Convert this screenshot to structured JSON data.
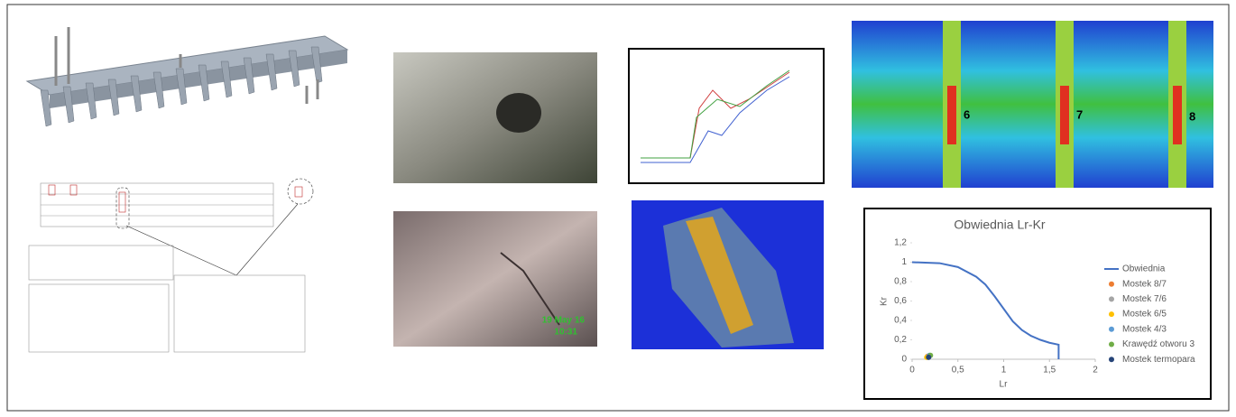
{
  "fea_labels": [
    "6",
    "7",
    "8"
  ],
  "photo_timestamp": [
    "19 May 16",
    "10:31"
  ],
  "chart_data": {
    "type": "scatter",
    "title": "Obwiednia Lr-Kr",
    "x_label": "Lr",
    "y_label": "Kr",
    "xlim": [
      0,
      2
    ],
    "ylim": [
      0,
      1.2
    ],
    "xticks": [
      0,
      {
        "value": 0.5,
        "label": "0,5"
      },
      1,
      {
        "value": 1.5,
        "label": "1,5"
      },
      2
    ],
    "yticks": [
      0,
      {
        "value": 0.2,
        "label": "0,2"
      },
      {
        "value": 0.4,
        "label": "0,4"
      },
      {
        "value": 0.6,
        "label": "0,6"
      },
      {
        "value": 0.8,
        "label": "0,8"
      },
      1,
      {
        "value": 1.2,
        "label": "1,2"
      }
    ],
    "legend": "right",
    "series": [
      {
        "name": "Obwiednia",
        "color": "#4472c4",
        "mode": "line",
        "x": [
          0,
          0.3,
          0.5,
          0.7,
          0.8,
          0.9,
          1.0,
          1.1,
          1.2,
          1.3,
          1.4,
          1.5,
          1.6,
          1.6
        ],
        "values": [
          1,
          0.99,
          0.95,
          0.85,
          0.77,
          0.65,
          0.52,
          0.39,
          0.3,
          0.24,
          0.2,
          0.17,
          0.15,
          0
        ]
      },
      {
        "name": "Mostek 8/7",
        "color": "#ed7d31",
        "mode": "markers",
        "x": [
          0.17
        ],
        "values": [
          0.03
        ]
      },
      {
        "name": "Mostek 7/6",
        "color": "#a5a5a5",
        "mode": "markers",
        "x": [
          0.18
        ],
        "values": [
          0.03
        ]
      },
      {
        "name": "Mostek 6/5",
        "color": "#ffc000",
        "mode": "markers",
        "x": [
          0.16
        ],
        "values": [
          0.02
        ]
      },
      {
        "name": "Mostek 4/3",
        "color": "#5b9bd5",
        "mode": "markers",
        "x": [
          0.19
        ],
        "values": [
          0.04
        ]
      },
      {
        "name": "Krawędź otworu 3",
        "color": "#70ad47",
        "mode": "markers",
        "x": [
          0.2
        ],
        "values": [
          0.04
        ]
      },
      {
        "name": "Mostek termopara",
        "color": "#264478",
        "mode": "markers",
        "x": [
          0.18
        ],
        "values": [
          0.02
        ]
      }
    ]
  }
}
